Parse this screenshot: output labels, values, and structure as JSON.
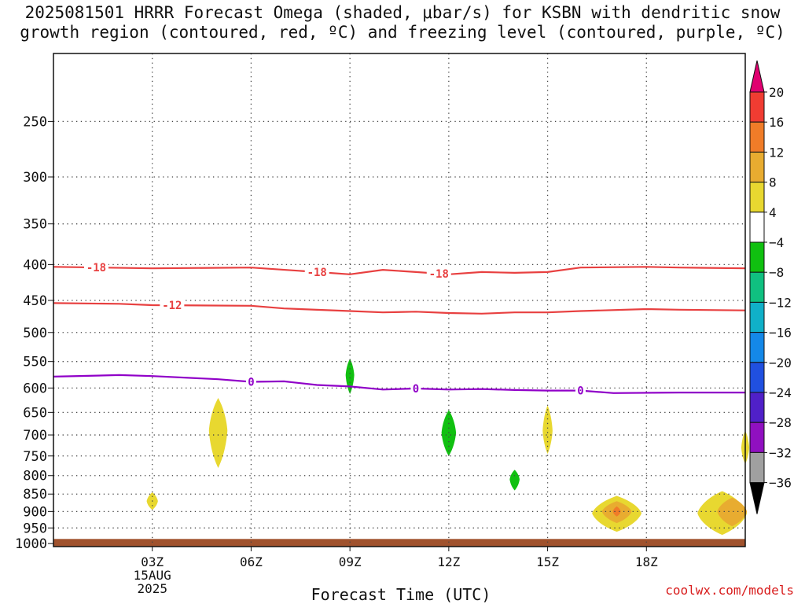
{
  "chart_data": {
    "type": "heatmap",
    "title_line1": "2025081501 HRRR Forecast Omega (shaded, μbar/s) for KSBN with dendritic snow",
    "title_line2": "growth region (contoured, red, ºC) and freezing level (contoured, purple, ºC)",
    "xlabel": "Forecast Time (UTC)",
    "credit": "coolwx.com/models",
    "x_ticks": [
      "03Z",
      "06Z",
      "09Z",
      "12Z",
      "15Z",
      "18Z"
    ],
    "x_tick_hours": [
      3,
      6,
      9,
      12,
      15,
      18
    ],
    "x_range_hours": [
      0,
      21
    ],
    "date_label": [
      "15AUG",
      "2025"
    ],
    "y_ticks": [
      250,
      300,
      350,
      400,
      450,
      500,
      550,
      600,
      650,
      700,
      750,
      800,
      850,
      900,
      950,
      1000
    ],
    "y_range_mb": [
      200,
      1010
    ],
    "y_scale": "log (pressure, hPa)",
    "grid": true,
    "colorbar": {
      "levels": [
        "20",
        "16",
        "12",
        "8",
        "4",
        "−4",
        "−8",
        "−12",
        "−16",
        "−20",
        "−24",
        "−28",
        "−32",
        "−36"
      ],
      "colors": [
        "#e00070",
        "#f03c32",
        "#f07c28",
        "#e8ac30",
        "#e8d830",
        "#ffffff",
        "#10c010",
        "#10c080",
        "#10b0c8",
        "#1488e8",
        "#2050e0",
        "#5020c8",
        "#9010c0",
        "#a0a0a0",
        "#000000"
      ]
    },
    "contours": [
      {
        "label": "-18",
        "color": "#e84040",
        "points": [
          [
            0,
            403
          ],
          [
            3,
            405
          ],
          [
            6,
            404
          ],
          [
            8,
            410
          ],
          [
            9,
            413
          ],
          [
            10,
            407
          ],
          [
            11,
            410
          ],
          [
            12,
            413
          ],
          [
            13,
            410
          ],
          [
            14,
            411
          ],
          [
            15,
            410
          ],
          [
            16,
            404
          ],
          [
            18,
            403
          ],
          [
            19,
            404
          ],
          [
            21,
            405
          ]
        ],
        "label_at": [
          1.3,
          8.0,
          11.7
        ]
      },
      {
        "label": "-12",
        "color": "#e84040",
        "points": [
          [
            0,
            454
          ],
          [
            2,
            455
          ],
          [
            3,
            457
          ],
          [
            6,
            458
          ],
          [
            7,
            462
          ],
          [
            9,
            466
          ],
          [
            10,
            468
          ],
          [
            11,
            467
          ],
          [
            12,
            469
          ],
          [
            13,
            470
          ],
          [
            14,
            468
          ],
          [
            15,
            468
          ],
          [
            16,
            466
          ],
          [
            18,
            463
          ],
          [
            19,
            464
          ],
          [
            21,
            465
          ]
        ],
        "label_at": [
          3.6
        ]
      },
      {
        "label": "0",
        "color": "#9000c8",
        "points": [
          [
            0,
            578
          ],
          [
            2,
            575
          ],
          [
            3,
            577
          ],
          [
            5,
            583
          ],
          [
            6,
            588
          ],
          [
            7,
            587
          ],
          [
            8,
            594
          ],
          [
            9,
            597
          ],
          [
            10,
            603
          ],
          [
            11,
            601
          ],
          [
            12,
            603
          ],
          [
            13,
            602
          ],
          [
            14,
            604
          ],
          [
            15,
            605
          ],
          [
            16,
            605
          ],
          [
            17,
            610
          ],
          [
            19,
            609
          ],
          [
            21,
            609
          ]
        ],
        "label_at": [
          6.0,
          11.0,
          16.0
        ]
      }
    ],
    "features": [
      {
        "value": "4 to 8",
        "color": "#e8d830",
        "center": [
          3.0,
          870
        ],
        "half_width_h": 0.17,
        "p_range": [
          845,
          895
        ]
      },
      {
        "value": "4 to 8",
        "color": "#e8d830",
        "center": [
          5.0,
          690
        ],
        "half_width_h": 0.28,
        "p_range": [
          620,
          780
        ]
      },
      {
        "value": "-4 to -8",
        "color": "#10c010",
        "center": [
          9.0,
          575
        ],
        "half_width_h": 0.13,
        "p_range": [
          545,
          612
        ]
      },
      {
        "value": "-4 to -8",
        "color": "#10c010",
        "center": [
          12.0,
          695
        ],
        "half_width_h": 0.22,
        "p_range": [
          645,
          750
        ]
      },
      {
        "value": "-4 to -8",
        "color": "#10c010",
        "center": [
          14.0,
          810
        ],
        "half_width_h": 0.15,
        "p_range": [
          785,
          840
        ]
      },
      {
        "value": "4 to 8",
        "color": "#e8d830",
        "center": [
          15.0,
          690
        ],
        "half_width_h": 0.15,
        "p_range": [
          635,
          745
        ]
      },
      {
        "value": "4 to 8",
        "color": "#e8d830",
        "center": [
          17.1,
          905
        ],
        "half_width_h": 0.75,
        "p_range": [
          855,
          962
        ]
      },
      {
        "value": "4 to 8",
        "color": "#e8d830",
        "center": [
          20.3,
          905
        ],
        "half_width_h": 0.75,
        "p_range": [
          842,
          972
        ]
      },
      {
        "value": "4 to 8",
        "color": "#e8d830",
        "center": [
          21.0,
          730
        ],
        "half_width_h": 0.12,
        "p_range": [
          690,
          770
        ]
      },
      {
        "value": "8 to 12",
        "color": "#e8ac30",
        "center": [
          17.1,
          900
        ],
        "half_width_h": 0.45,
        "p_range": [
          870,
          935
        ]
      },
      {
        "value": "8 to 12",
        "color": "#e8ac30",
        "center": [
          20.6,
          900
        ],
        "half_width_h": 0.45,
        "p_range": [
          860,
          945
        ]
      },
      {
        "value": "12 to 16",
        "color": "#f07c28",
        "center": [
          17.1,
          900
        ],
        "half_width_h": 0.12,
        "p_range": [
          885,
          915
        ]
      }
    ],
    "ground": {
      "color": "#a0522d",
      "p_top": 985
    }
  }
}
